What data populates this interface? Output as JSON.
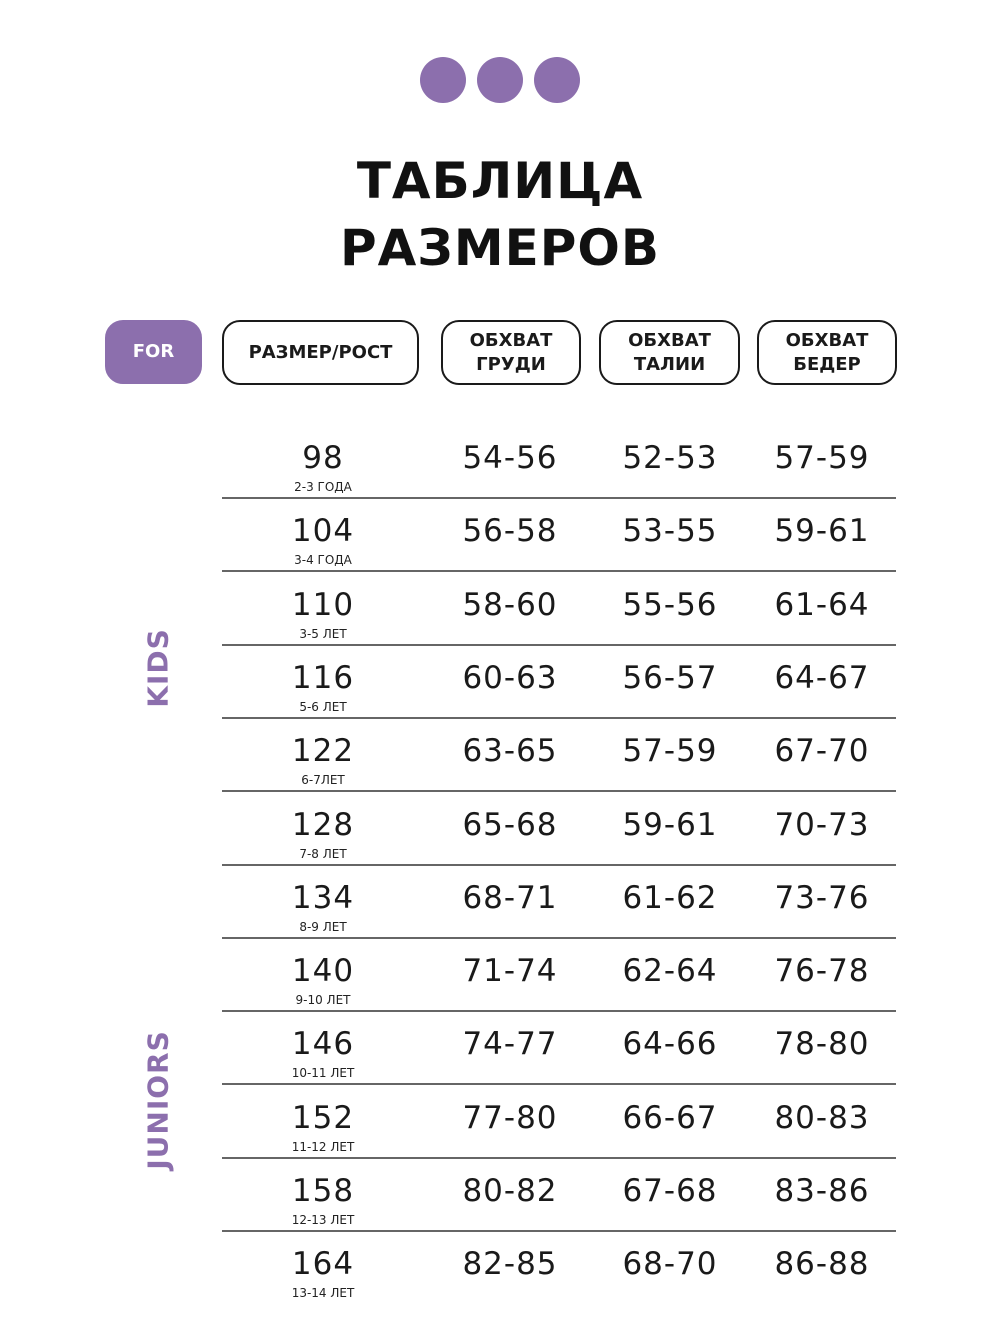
{
  "brand_color": "#8c6fad",
  "decor": {
    "dots": 3,
    "icon": "three-dots-icon"
  },
  "title": {
    "line1": "ТАБЛИЦА",
    "line2": "РАЗМЕРОВ"
  },
  "header": {
    "for": "FOR",
    "size": "РАЗМЕР/РОСТ",
    "chest": "ОБХВАТ\nГРУДИ",
    "waist": "ОБХВАТ\nТАЛИИ",
    "hips": "ОБХВАТ\nБЕДЕР"
  },
  "groups": {
    "kids": "KIDS",
    "juniors": "JUNIORS"
  },
  "rows": [
    {
      "size": "98",
      "age": "2-3 ГОДА",
      "chest": "54-56",
      "waist": "52-53",
      "hips": "57-59"
    },
    {
      "size": "104",
      "age": "3-4 ГОДА",
      "chest": "56-58",
      "waist": "53-55",
      "hips": "59-61"
    },
    {
      "size": "110",
      "age": "3-5 ЛЕТ",
      "chest": "58-60",
      "waist": "55-56",
      "hips": "61-64"
    },
    {
      "size": "116",
      "age": "5-6 ЛЕТ",
      "chest": "60-63",
      "waist": "56-57",
      "hips": "64-67"
    },
    {
      "size": "122",
      "age": "6-7ЛЕТ",
      "chest": "63-65",
      "waist": "57-59",
      "hips": "67-70"
    },
    {
      "size": "128",
      "age": "7-8 ЛЕТ",
      "chest": "65-68",
      "waist": "59-61",
      "hips": "70-73"
    },
    {
      "size": "134",
      "age": "8-9 ЛЕТ",
      "chest": "68-71",
      "waist": "61-62",
      "hips": "73-76"
    },
    {
      "size": "140",
      "age": "9-10 ЛЕТ",
      "chest": "71-74",
      "waist": "62-64",
      "hips": "76-78"
    },
    {
      "size": "146",
      "age": "10-11 ЛЕТ",
      "chest": "74-77",
      "waist": "64-66",
      "hips": "78-80"
    },
    {
      "size": "152",
      "age": "11-12 ЛЕТ",
      "chest": "77-80",
      "waist": "66-67",
      "hips": "80-83"
    },
    {
      "size": "158",
      "age": "12-13 ЛЕТ",
      "chest": "80-82",
      "waist": "67-68",
      "hips": "83-86"
    },
    {
      "size": "164",
      "age": "13-14 ЛЕТ",
      "chest": "82-85",
      "waist": "68-70",
      "hips": "86-88"
    }
  ]
}
